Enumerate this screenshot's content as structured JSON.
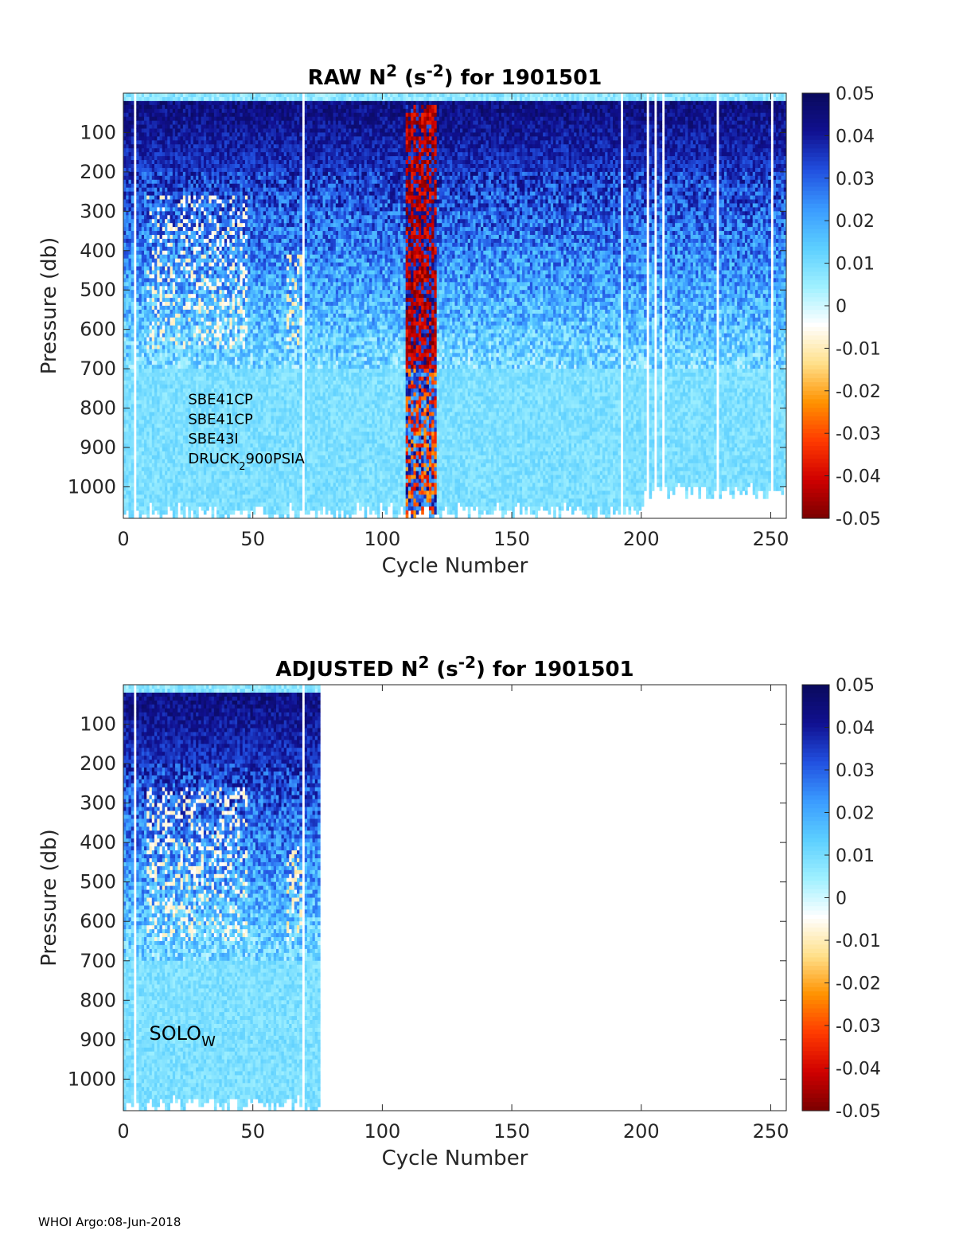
{
  "footer": "WHOI Argo:08-Jun-2018",
  "colorbar": {
    "ticks": [
      "0.05",
      "0.04",
      "0.03",
      "0.02",
      "0.01",
      "0",
      "-0.01",
      "-0.02",
      "-0.03",
      "-0.04",
      "-0.05"
    ],
    "range": [
      -0.05,
      0.05
    ],
    "colors_low_to_high": [
      "#7a0000",
      "#d00000",
      "#ff3a00",
      "#ff9200",
      "#ffe08a",
      "#ffffff",
      "#9ff0ff",
      "#5ccfff",
      "#3a9bff",
      "#2150e0",
      "#101090",
      "#0a0a5c"
    ]
  },
  "chart_data": [
    {
      "type": "heatmap",
      "title_main": "RAW N",
      "title_sup1": "2",
      "title_mid": " (s",
      "title_sup2": "-2",
      "title_end": ") for 1901501",
      "xlabel": "Cycle Number",
      "ylabel": "Pressure (db)",
      "xlim": [
        0,
        256
      ],
      "ylim": [
        1080,
        0
      ],
      "xticks": [
        "0",
        "50",
        "100",
        "150",
        "200",
        "250"
      ],
      "yticks": [
        "100",
        "200",
        "300",
        "400",
        "500",
        "600",
        "700",
        "800",
        "900",
        "1000"
      ],
      "cycles_shown": [
        0,
        256
      ],
      "data_gaps_cycles": [
        4,
        69,
        192,
        202,
        205,
        208,
        229,
        250
      ],
      "negative_band_cycles": [
        109,
        120
      ],
      "annotations": [
        {
          "text": "SBE41CP",
          "x": 25,
          "y": 790
        },
        {
          "text": "SBE41CP",
          "x": 25,
          "y": 840
        },
        {
          "text": "SBE43I",
          "x": 25,
          "y": 890
        },
        {
          "text": "DRUCK",
          "sub": "2",
          "text2": "900PSIA",
          "x": 25,
          "y": 940
        }
      ]
    },
    {
      "type": "heatmap",
      "title_main": "ADJUSTED N",
      "title_sup1": "2",
      "title_mid": " (s",
      "title_sup2": "-2",
      "title_end": ") for 1901501",
      "xlabel": "Cycle Number",
      "ylabel": "Pressure (db)",
      "xlim": [
        0,
        256
      ],
      "ylim": [
        1080,
        0
      ],
      "xticks": [
        "0",
        "50",
        "100",
        "150",
        "200",
        "250"
      ],
      "yticks": [
        "100",
        "200",
        "300",
        "400",
        "500",
        "600",
        "700",
        "800",
        "900",
        "1000"
      ],
      "cycles_shown": [
        0,
        76
      ],
      "data_gaps_cycles": [
        4,
        69
      ],
      "negative_band_cycles": [],
      "annotations": [
        {
          "text": "SOLO",
          "sub": "W",
          "x": 10,
          "y": 900
        }
      ]
    }
  ]
}
